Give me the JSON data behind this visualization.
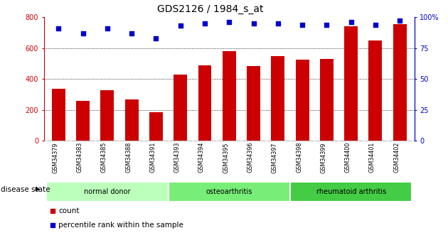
{
  "title": "GDS2126 / 1984_s_at",
  "samples": [
    "GSM34379",
    "GSM34383",
    "GSM34385",
    "GSM34388",
    "GSM34391",
    "GSM34393",
    "GSM34394",
    "GSM34395",
    "GSM34396",
    "GSM34397",
    "GSM34398",
    "GSM34399",
    "GSM34400",
    "GSM34401",
    "GSM34402"
  ],
  "counts": [
    335,
    260,
    330,
    270,
    185,
    430,
    490,
    580,
    485,
    550,
    525,
    530,
    740,
    648,
    755
  ],
  "percentiles": [
    91,
    87,
    91,
    87,
    83,
    93,
    95,
    96,
    95,
    95,
    94,
    94,
    96,
    94,
    97
  ],
  "groups": [
    {
      "label": "normal donor",
      "start": 0,
      "end": 5,
      "color": "#bbffbb"
    },
    {
      "label": "osteoarthritis",
      "start": 5,
      "end": 10,
      "color": "#77ee77"
    },
    {
      "label": "rheumatoid arthritis",
      "start": 10,
      "end": 15,
      "color": "#44cc44"
    }
  ],
  "bar_color": "#cc0000",
  "dot_color": "#0000cc",
  "ylim_left": [
    0,
    800
  ],
  "ylim_right": [
    0,
    100
  ],
  "yticks_left": [
    0,
    200,
    400,
    600,
    800
  ],
  "yticks_right": [
    0,
    25,
    50,
    75,
    100
  ],
  "bg_color": "#ffffff",
  "tick_area_color": "#c8c8c8",
  "title_fontsize": 10,
  "left_axis_color": "#cc0000",
  "right_axis_color": "#0000cc",
  "disease_state_label": "disease state",
  "legend_count_label": "count",
  "legend_pct_label": "percentile rank within the sample"
}
